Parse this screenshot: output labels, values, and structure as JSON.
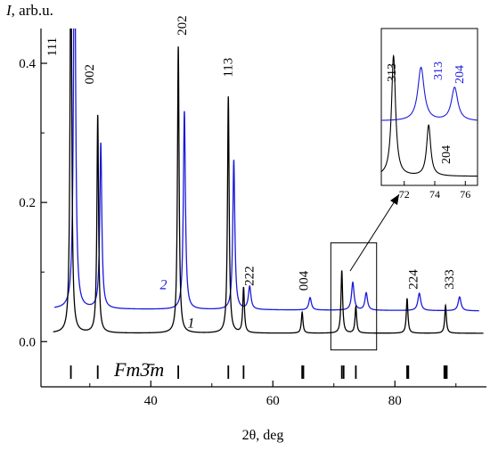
{
  "chart_data": {
    "type": "line",
    "xlabel": "2θ, deg",
    "ylabel_symbol": "I",
    "ylabel_unit": ", arb.u.",
    "xlim": [
      22,
      95
    ],
    "ylim": [
      -0.065,
      0.45
    ],
    "x_ticks": [
      40,
      60,
      80
    ],
    "x_tick_labels": [
      "40",
      "60",
      "80"
    ],
    "y_ticks": [
      0.0,
      0.2,
      0.4
    ],
    "y_tick_labels": [
      "0.0",
      "0.2",
      "0.4"
    ],
    "x_minor_ticks": [
      30,
      50,
      70,
      90
    ],
    "y_minor_ticks": [
      0.1,
      0.3
    ],
    "series": [
      {
        "name": "1",
        "color": "#000000",
        "baseline": 0.012,
        "peaks": [
          {
            "x": 26.9,
            "h": 0.6,
            "w": 0.16
          },
          {
            "x": 31.3,
            "h": 0.313,
            "w": 0.16
          },
          {
            "x": 44.5,
            "h": 0.412,
            "w": 0.16
          },
          {
            "x": 52.7,
            "h": 0.34,
            "w": 0.16
          },
          {
            "x": 55.2,
            "h": 0.065,
            "w": 0.16
          },
          {
            "x": 64.8,
            "h": 0.03,
            "w": 0.16
          },
          {
            "x": 71.3,
            "h": 0.09,
            "w": 0.16
          },
          {
            "x": 73.6,
            "h": 0.038,
            "w": 0.16
          },
          {
            "x": 82.0,
            "h": 0.05,
            "w": 0.16
          },
          {
            "x": 88.3,
            "h": 0.04,
            "w": 0.16
          }
        ]
      },
      {
        "name": "2",
        "color": "#1a1adb",
        "baseline": 0.047,
        "slope": -4e-05,
        "peaks": [
          {
            "x": 27.5,
            "h": 0.6,
            "w": 0.2
          },
          {
            "x": 31.8,
            "h": 0.238,
            "w": 0.2
          },
          {
            "x": 45.5,
            "h": 0.285,
            "w": 0.2
          },
          {
            "x": 53.6,
            "h": 0.215,
            "w": 0.2
          },
          {
            "x": 56.2,
            "h": 0.033,
            "w": 0.25
          },
          {
            "x": 66.1,
            "h": 0.018,
            "w": 0.25
          },
          {
            "x": 73.1,
            "h": 0.04,
            "w": 0.25
          },
          {
            "x": 75.3,
            "h": 0.025,
            "w": 0.25
          },
          {
            "x": 84.0,
            "h": 0.025,
            "w": 0.28
          },
          {
            "x": 90.6,
            "h": 0.02,
            "w": 0.28
          }
        ]
      }
    ],
    "reference_ticks": [
      26.9,
      31.3,
      44.5,
      52.7,
      55.2,
      64.8,
      65.0,
      71.3,
      71.6,
      73.6,
      82.0,
      82.2,
      88.1,
      88.3,
      88.5
    ],
    "reference_label": "Fm3̄m",
    "curve_labels": [
      {
        "text": "1",
        "x": 46,
        "y": 0.02,
        "color": "#000000"
      },
      {
        "text": "2",
        "x": 41.5,
        "y": 0.075,
        "color": "#1a1adb"
      }
    ],
    "peak_labels": [
      {
        "text": "111",
        "x": 24.5,
        "y": 0.41
      },
      {
        "text": "002",
        "x": 30.6,
        "y": 0.37
      },
      {
        "text": "202",
        "x": 45.8,
        "y": 0.44
      },
      {
        "text": "113",
        "x": 53.3,
        "y": 0.38
      },
      {
        "text": "222",
        "x": 56.8,
        "y": 0.08
      },
      {
        "text": "004",
        "x": 65.7,
        "y": 0.073
      },
      {
        "text": "224",
        "x": 83.7,
        "y": 0.075
      },
      {
        "text": "333",
        "x": 89.6,
        "y": 0.075
      }
    ],
    "inset": {
      "xlim": [
        70.5,
        76.8
      ],
      "x_ticks": [
        72,
        74,
        76
      ],
      "x_tick_labels": [
        "72",
        "74",
        "76"
      ],
      "region_xlim": [
        69.5,
        77
      ],
      "region_ylim": [
        -0.012,
        0.142
      ],
      "labels": [
        {
          "text": "313",
          "color": "#000000"
        },
        {
          "text": "313",
          "color": "#1a1adb"
        },
        {
          "text": "204",
          "color": "#1a1adb"
        },
        {
          "text": "204",
          "color": "#000000"
        }
      ]
    }
  }
}
